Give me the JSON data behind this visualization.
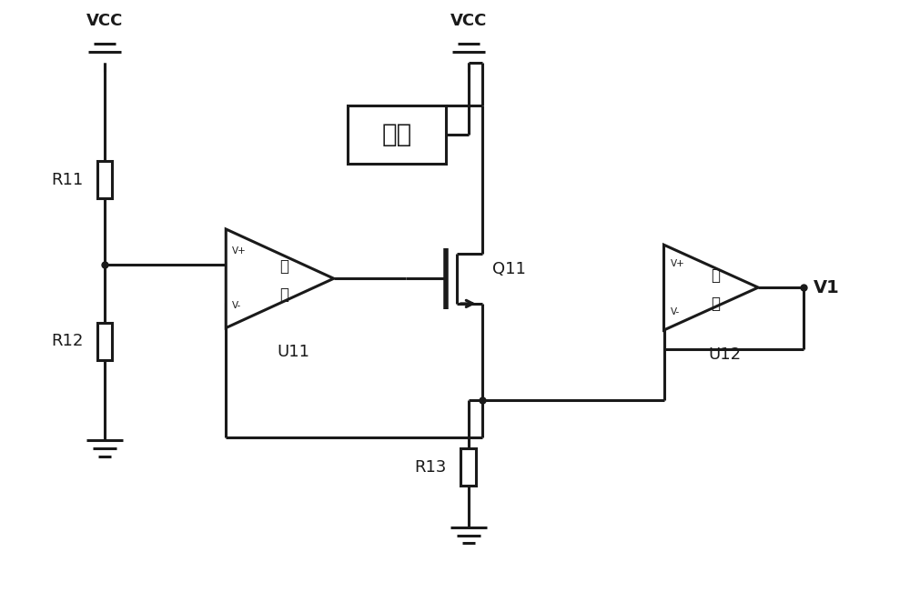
{
  "bg_color": "#ffffff",
  "line_color": "#1a1a1a",
  "line_width": 2.2,
  "fig_width": 10.0,
  "fig_height": 6.51,
  "vcc1_label": "VCC",
  "vcc2_label": "VCC",
  "R11_label": "R11",
  "R12_label": "R12",
  "R13_label": "R13",
  "opamp1_label": "U11",
  "opamp1_text": "运放",
  "opamp2_label": "U12",
  "opamp2_text": "运放",
  "load_label": "负载",
  "Q11_label": "Q11",
  "V1_label": "V1"
}
